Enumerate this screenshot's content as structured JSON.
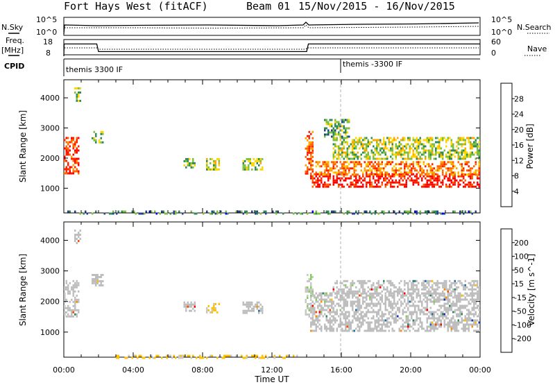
{
  "header": {
    "title": "Fort Hays West (fitACF)",
    "beam": "Beam 01",
    "date_range": "15/Nov/2015 - 16/Nov/2015"
  },
  "top_panels": {
    "nsky_label": "N.Sky",
    "nsky_ticks": [
      "10^5",
      "10^0"
    ],
    "nsearch_label": "N.Search",
    "nsearch_ticks": [
      "10^5",
      "10^0"
    ],
    "freq_label": "Freq.",
    "freq_unit": "[MHz]",
    "freq_ticks": [
      "18",
      "8"
    ],
    "nave_label": "Nave",
    "nave_ticks": [
      "60",
      "0"
    ],
    "freq_trace": {
      "times_h": [
        0,
        0.02,
        1.9,
        2.0,
        14.0,
        14.1,
        24
      ],
      "values": [
        8,
        16,
        16,
        11,
        11,
        16,
        16
      ]
    },
    "cpid_label": "CPID",
    "cpid_entries": [
      {
        "text": "themis 3300 IF",
        "start_h": 0
      },
      {
        "text": "themis -3300 IF",
        "start_h": 16
      }
    ]
  },
  "colors": {
    "power_scale": [
      "#0000ff",
      "#27408b",
      "#2e8b57",
      "#7fbf3f",
      "#ffd700",
      "#ffa500",
      "#ff6600",
      "#ff2200",
      "#ff0000"
    ],
    "velocity_scale": [
      "#ff0000",
      "#ff4500",
      "#ff8c00",
      "#ffc000",
      "#c8c8c8",
      "#c8c8c8",
      "#7fd34e",
      "#2e8b57",
      "#1e6ea8",
      "#1c2fbd"
    ],
    "ground_scatter": "#bebebe",
    "marker_line": "#b0b0b0"
  },
  "chart_data": [
    {
      "type": "heatmap",
      "name": "power",
      "ylabel": "Slant Range [km]",
      "xlabel": "",
      "x_ticks": [
        "00:00",
        "04:00",
        "08:00",
        "12:00",
        "16:00",
        "20:00",
        "00:00"
      ],
      "xlim_hours": [
        0,
        24
      ],
      "ylim_km": [
        180,
        4600
      ],
      "y_ticks": [
        1000,
        2000,
        3000,
        4000
      ],
      "colorbar": {
        "label": "Power [dB]",
        "ticks": [
          "4",
          "8",
          "12",
          "16",
          "20",
          "24",
          "28"
        ],
        "range": [
          0,
          30
        ]
      },
      "echo_regions": [
        {
          "t": [
            0.0,
            0.9
          ],
          "r": [
            1500,
            2700
          ],
          "value": 24
        },
        {
          "t": [
            0.6,
            1.0
          ],
          "r": [
            3900,
            4350
          ],
          "value": 12
        },
        {
          "t": [
            1.6,
            2.3
          ],
          "r": [
            2500,
            2900
          ],
          "value": 12
        },
        {
          "t": [
            6.9,
            7.6
          ],
          "r": [
            1700,
            2000
          ],
          "value": 12
        },
        {
          "t": [
            8.2,
            9.0
          ],
          "r": [
            1600,
            2000
          ],
          "value": 13
        },
        {
          "t": [
            10.3,
            11.5
          ],
          "r": [
            1650,
            2000
          ],
          "value": 12
        },
        {
          "t": [
            13.9,
            14.4
          ],
          "r": [
            1500,
            2900
          ],
          "value": 22
        },
        {
          "t": [
            14.2,
            24.0
          ],
          "r": [
            1050,
            1500
          ],
          "value": 27
        },
        {
          "t": [
            14.5,
            24.0
          ],
          "r": [
            1450,
            1900
          ],
          "value": 20
        },
        {
          "t": [
            15.5,
            24.0
          ],
          "r": [
            2000,
            2700
          ],
          "value": 13
        },
        {
          "t": [
            15.0,
            16.5
          ],
          "r": [
            2700,
            3300
          ],
          "value": 10
        },
        {
          "t": [
            0.2,
            24.0
          ],
          "r": [
            180,
            260
          ],
          "value": 8
        }
      ]
    },
    {
      "type": "heatmap",
      "name": "velocity",
      "ylabel": "Slant Range [km]",
      "xlabel": "Time UT",
      "x_ticks": [
        "00:00",
        "04:00",
        "08:00",
        "12:00",
        "16:00",
        "20:00",
        "00:00"
      ],
      "xlim_hours": [
        0,
        24
      ],
      "ylim_km": [
        180,
        4600
      ],
      "y_ticks": [
        1000,
        2000,
        3000,
        4000
      ],
      "colorbar": {
        "label": "Velocity [m s^-1]",
        "ticks": [
          "-200",
          "-100",
          "-50",
          "-15",
          "15",
          "50",
          "100",
          "200"
        ],
        "range": [
          -250,
          250
        ]
      },
      "echo_regions": [
        {
          "t": [
            0.0,
            0.9
          ],
          "r": [
            1500,
            2700
          ],
          "value": 0,
          "gs": true
        },
        {
          "t": [
            0.6,
            1.0
          ],
          "r": [
            3900,
            4350
          ],
          "value": 0,
          "gs": true
        },
        {
          "t": [
            1.6,
            2.3
          ],
          "r": [
            2500,
            2900
          ],
          "value": 0,
          "gs": true
        },
        {
          "t": [
            6.9,
            7.6
          ],
          "r": [
            1700,
            2000
          ],
          "value": 0,
          "gs": true
        },
        {
          "t": [
            8.2,
            9.0
          ],
          "r": [
            1650,
            1950
          ],
          "value": -60
        },
        {
          "t": [
            10.3,
            11.5
          ],
          "r": [
            1650,
            2000
          ],
          "value": 0,
          "gs": true
        },
        {
          "t": [
            13.9,
            14.4
          ],
          "r": [
            1500,
            2900
          ],
          "value": 40
        },
        {
          "t": [
            14.2,
            24.0
          ],
          "r": [
            1050,
            2300
          ],
          "value": 0,
          "gs": true
        },
        {
          "t": [
            15.5,
            24.0
          ],
          "r": [
            2200,
            2700
          ],
          "value": 0,
          "gs": true
        },
        {
          "t": [
            3.0,
            13.5
          ],
          "r": [
            180,
            260
          ],
          "value": -60
        }
      ]
    }
  ]
}
